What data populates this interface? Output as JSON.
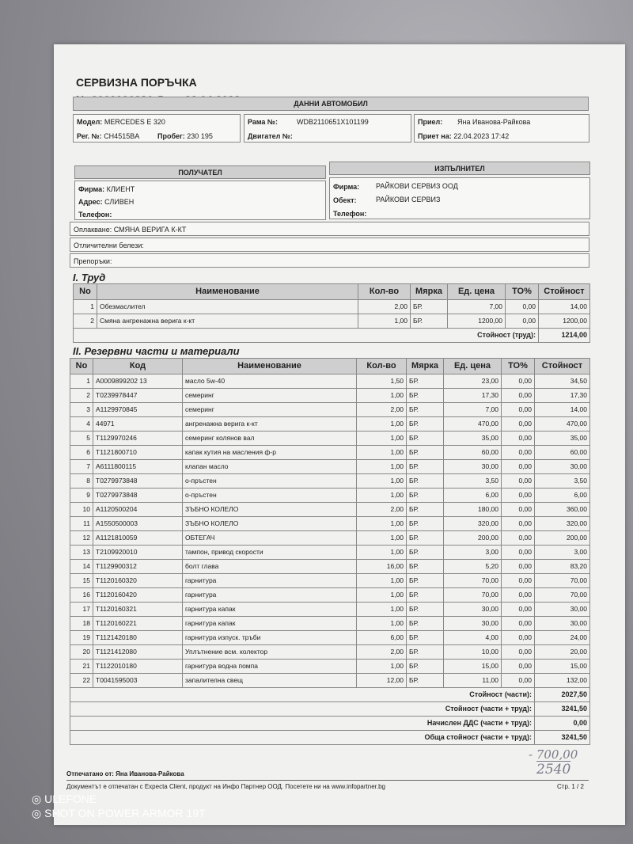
{
  "title": "СЕРВИЗНА ПОРЪЧКА",
  "number_line": "№ 0000001286   Дата 22.04.2023",
  "car": {
    "header": "ДАННИ АВТОМОБИЛ",
    "model_label": "Модел:",
    "model": "MERCEDES E 320",
    "reg_label": "Рег. №:",
    "reg": "CH4515BA",
    "km_label": "Пробег:",
    "km": "230 195",
    "frame_label": "Рама №:",
    "frame": "WDB2110651X101199",
    "engine_label": "Двигател №:",
    "received_by_label": "Приел:",
    "received_by": "Яна Иванова-Райкова",
    "received_at_label": "Приет на:",
    "received_at": "22.04.2023 17:42"
  },
  "recipient": {
    "header": "ПОЛУЧАТЕЛ",
    "firm_label": "Фирма:",
    "firm": "КЛИЕНТ",
    "address_label": "Адрес:",
    "address": "СЛИВЕН",
    "phone_label": "Телефон:"
  },
  "contractor": {
    "header": "ИЗПЪЛНИТЕЛ",
    "firm_label": "Фирма:",
    "firm": "РАЙКОВИ СЕРВИЗ ООД",
    "site_label": "Обект:",
    "site": "РАЙКОВИ СЕРВИЗ",
    "phone_label": "Телефон:"
  },
  "complaint": "Оплакване: СМЯНА ВЕРИГА К-КТ",
  "marks": "Отличителни белези:",
  "recommendations": "Препоръки:",
  "labor": {
    "title": "I. Труд",
    "headers": [
      "No",
      "Наименование",
      "Кол-во",
      "Мярка",
      "Ед. цена",
      "ТО%",
      "Стойност"
    ],
    "rows": [
      [
        "1",
        "Обезмаслител",
        "2,00",
        "БР.",
        "7,00",
        "0,00",
        "14,00"
      ],
      [
        "2",
        "Смяна ангренажна верига к-кт",
        "1,00",
        "БР.",
        "1200,00",
        "0,00",
        "1200,00"
      ]
    ],
    "total_label": "Стойност (труд):",
    "total": "1214,00"
  },
  "parts": {
    "title": "II. Резервни части и материали",
    "headers": [
      "No",
      "Код",
      "Наименование",
      "Кол-во",
      "Мярка",
      "Ед. цена",
      "ТО%",
      "Стойност"
    ],
    "rows": [
      [
        "1",
        "A0009899202 13",
        "масло 5w-40",
        "1,50",
        "БР.",
        "23,00",
        "0,00",
        "34,50"
      ],
      [
        "2",
        "T0239978447",
        "семеринг",
        "1,00",
        "БР.",
        "17,30",
        "0,00",
        "17,30"
      ],
      [
        "3",
        "A1129970845",
        "семеринг",
        "2,00",
        "БР.",
        "7,00",
        "0,00",
        "14,00"
      ],
      [
        "4",
        "44971",
        "ангренажна верига к-кт",
        "1,00",
        "БР.",
        "470,00",
        "0,00",
        "470,00"
      ],
      [
        "5",
        "T1129970246",
        "семеринг колянов вал",
        "1,00",
        "БР.",
        "35,00",
        "0,00",
        "35,00"
      ],
      [
        "6",
        "T1121800710",
        "капак кутия на масления ф-р",
        "1,00",
        "БР.",
        "60,00",
        "0,00",
        "60,00"
      ],
      [
        "7",
        "A6111800115",
        "клапан масло",
        "1,00",
        "БР.",
        "30,00",
        "0,00",
        "30,00"
      ],
      [
        "8",
        "T0279973848",
        "о-пръстен",
        "1,00",
        "БР.",
        "3,50",
        "0,00",
        "3,50"
      ],
      [
        "9",
        "T0279973848",
        "о-пръстен",
        "1,00",
        "БР.",
        "6,00",
        "0,00",
        "6,00"
      ],
      [
        "10",
        "A1120500204",
        "ЗЪБНО КОЛЕЛО",
        "2,00",
        "БР.",
        "180,00",
        "0,00",
        "360,00"
      ],
      [
        "11",
        "A1550500003",
        "ЗЪБНО КОЛЕЛО",
        "1,00",
        "БР.",
        "320,00",
        "0,00",
        "320,00"
      ],
      [
        "12",
        "A1121810059",
        "ОБТЕГАЧ",
        "1,00",
        "БР.",
        "200,00",
        "0,00",
        "200,00"
      ],
      [
        "13",
        "T2109920010",
        "тампон, привод скорости",
        "1,00",
        "БР.",
        "3,00",
        "0,00",
        "3,00"
      ],
      [
        "14",
        "T1129900312",
        "болт глава",
        "16,00",
        "БР.",
        "5,20",
        "0,00",
        "83,20"
      ],
      [
        "15",
        "T1120160320",
        "гарнитура",
        "1,00",
        "БР.",
        "70,00",
        "0,00",
        "70,00"
      ],
      [
        "16",
        "T1120160420",
        "гарнитура",
        "1,00",
        "БР.",
        "70,00",
        "0,00",
        "70,00"
      ],
      [
        "17",
        "T1120160321",
        "гарнитура капак",
        "1,00",
        "БР.",
        "30,00",
        "0,00",
        "30,00"
      ],
      [
        "18",
        "T1120160221",
        "гарнитура капак",
        "1,00",
        "БР.",
        "30,00",
        "0,00",
        "30,00"
      ],
      [
        "19",
        "T1121420180",
        "гарнитура изпуск. тръби",
        "6,00",
        "БР.",
        "4,00",
        "0,00",
        "24,00"
      ],
      [
        "20",
        "T1121412080",
        "Уплътнение всм. колектор",
        "2,00",
        "БР.",
        "10,00",
        "0,00",
        "20,00"
      ],
      [
        "21",
        "T1122010180",
        "гарнитура водна помпа",
        "1,00",
        "БР.",
        "15,00",
        "0,00",
        "15,00"
      ],
      [
        "22",
        "T0041595003",
        "запалителна свещ",
        "12,00",
        "БР.",
        "11,00",
        "0,00",
        "132,00"
      ]
    ],
    "totals": [
      [
        "Стойност (части):",
        "2027,50"
      ],
      [
        "Стойност (части + труд):",
        "3241,50"
      ],
      [
        "Начислен ДДС (части + труд):",
        "0,00"
      ],
      [
        "Обща стойност (части + труд):",
        "3241,50"
      ]
    ]
  },
  "handwritten": {
    "minus": "- 700,00",
    "result": "2540"
  },
  "footer": {
    "printed_by": "Отпечатано от: Яна Иванова-Райкова",
    "note": "Документът е отпечатан с Expecta Client, продукт на Инфо Партнер ООД. Посетете ни на www.infopartner.bg",
    "page": "Стр. 1 / 2"
  },
  "watermark": {
    "brand": "ULEFONE",
    "shot": "SHOT ON POWER ARMOR 19T"
  }
}
